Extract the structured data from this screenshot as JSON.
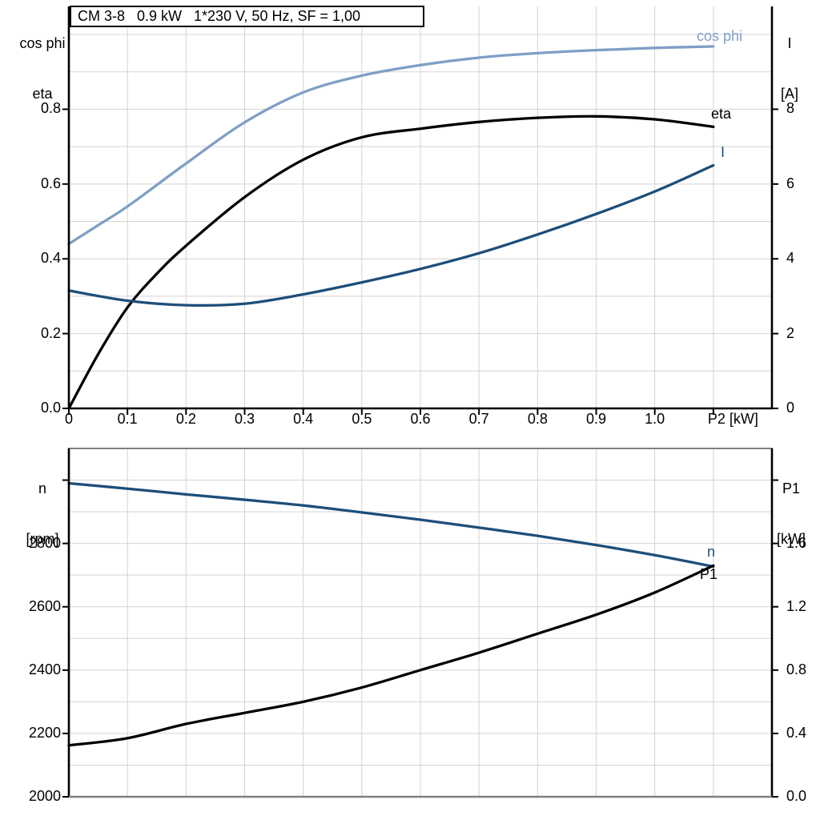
{
  "title_box": {
    "text": "CM 3-8   0.9 kW   1*230 V, 50 Hz, SF = 1,00"
  },
  "colors": {
    "background": "#ffffff",
    "light_blue": "#7e9fc5",
    "dark_blue": "#1d4e79",
    "black": "#000000",
    "grid": "#d4d4d4",
    "axis": "#000000",
    "frame_gray": "#808080"
  },
  "chart_data": [
    {
      "type": "line",
      "title": "CM 3-8   0.9 kW   1*230 V, 50 Hz, SF = 1,00",
      "xlabel": "P2 [kW]",
      "xlim": [
        0,
        1.2
      ],
      "x_tick_values": [
        0,
        0.1,
        0.2,
        0.3,
        0.4,
        0.5,
        0.6,
        0.7,
        0.8,
        0.9,
        1.0,
        1.1
      ],
      "x_tick_labels": [
        "0",
        "0.1",
        "0.2",
        "0.3",
        "0.4",
        "0.5",
        "0.6",
        "0.7",
        "0.8",
        "0.9",
        "1.0",
        ""
      ],
      "x_grid_values": [
        0.1,
        0.2,
        0.3,
        0.4,
        0.5,
        0.6,
        0.7,
        0.8,
        0.9,
        1.0,
        1.1
      ],
      "grid": true,
      "legend_position": "inline-right-end",
      "left_axis": {
        "title_lines": [
          "cos phi",
          "eta"
        ],
        "lim": [
          0,
          1.075
        ],
        "tick_values": [
          0.0,
          0.2,
          0.4,
          0.6,
          0.8
        ],
        "tick_labels": [
          "0.0",
          "0.2",
          "0.4",
          "0.6",
          "0.8"
        ],
        "grid_values": [
          0.1,
          0.2,
          0.3,
          0.4,
          0.5,
          0.6,
          0.7,
          0.8,
          0.9,
          1.0
        ]
      },
      "right_axis": {
        "title_lines": [
          "I",
          "[A]"
        ],
        "lim": [
          0,
          10.75
        ],
        "tick_values": [
          0,
          2,
          4,
          6,
          8
        ],
        "tick_labels": [
          "0",
          "2",
          "4",
          "6",
          "8"
        ]
      },
      "series": [
        {
          "name": "cos phi",
          "axis": "left",
          "color_key": "light_blue",
          "points": [
            [
              0,
              0.44
            ],
            [
              0.05,
              0.49
            ],
            [
              0.1,
              0.54
            ],
            [
              0.2,
              0.655
            ],
            [
              0.3,
              0.765
            ],
            [
              0.4,
              0.845
            ],
            [
              0.5,
              0.89
            ],
            [
              0.6,
              0.918
            ],
            [
              0.7,
              0.938
            ],
            [
              0.8,
              0.95
            ],
            [
              0.9,
              0.958
            ],
            [
              1.0,
              0.964
            ],
            [
              1.1,
              0.968
            ]
          ]
        },
        {
          "name": "eta",
          "axis": "left",
          "color_key": "black",
          "points": [
            [
              0,
              0
            ],
            [
              0.05,
              0.145
            ],
            [
              0.1,
              0.27
            ],
            [
              0.15,
              0.36
            ],
            [
              0.2,
              0.435
            ],
            [
              0.3,
              0.565
            ],
            [
              0.4,
              0.665
            ],
            [
              0.5,
              0.725
            ],
            [
              0.6,
              0.748
            ],
            [
              0.7,
              0.766
            ],
            [
              0.8,
              0.777
            ],
            [
              0.9,
              0.781
            ],
            [
              1.0,
              0.773
            ],
            [
              1.1,
              0.753
            ]
          ]
        },
        {
          "name": "I",
          "axis": "right",
          "color_key": "dark_blue",
          "points": [
            [
              0,
              3.15
            ],
            [
              0.1,
              2.88
            ],
            [
              0.2,
              2.76
            ],
            [
              0.3,
              2.8
            ],
            [
              0.4,
              3.05
            ],
            [
              0.5,
              3.37
            ],
            [
              0.6,
              3.73
            ],
            [
              0.7,
              4.15
            ],
            [
              0.8,
              4.65
            ],
            [
              0.9,
              5.2
            ],
            [
              1.0,
              5.8
            ],
            [
              1.1,
              6.5
            ]
          ]
        }
      ]
    },
    {
      "type": "line",
      "title": "",
      "xlabel": "",
      "xlim": [
        0,
        1.2
      ],
      "x_tick_values": [],
      "x_tick_labels": [],
      "x_grid_values": [
        0.1,
        0.2,
        0.3,
        0.4,
        0.5,
        0.6,
        0.7,
        0.8,
        0.9,
        1.0,
        1.1
      ],
      "grid": true,
      "legend_position": "inline-right-end",
      "left_axis": {
        "title_lines": [
          "n",
          "[rpm]"
        ],
        "lim": [
          2000,
          3100
        ],
        "tick_values": [
          2000,
          2200,
          2400,
          2600,
          2800,
          3000
        ],
        "tick_labels": [
          "2000",
          "2200",
          "2400",
          "2600",
          "2800",
          ""
        ],
        "grid_values": [
          2100,
          2200,
          2300,
          2400,
          2500,
          2600,
          2700,
          2800,
          2900,
          3000
        ]
      },
      "right_axis": {
        "title_lines": [
          "P1",
          "[kW]"
        ],
        "lim": [
          0,
          2.2
        ],
        "tick_values": [
          0.0,
          0.4,
          0.8,
          1.2,
          1.6,
          2.0
        ],
        "tick_labels": [
          "0.0",
          "0.4",
          "0.8",
          "1.2",
          "1.6",
          ""
        ]
      },
      "series": [
        {
          "name": "n",
          "axis": "left",
          "color_key": "dark_blue",
          "points": [
            [
              0,
              2990
            ],
            [
              0.1,
              2973
            ],
            [
              0.2,
              2955
            ],
            [
              0.3,
              2938
            ],
            [
              0.4,
              2920
            ],
            [
              0.5,
              2898
            ],
            [
              0.6,
              2875
            ],
            [
              0.7,
              2850
            ],
            [
              0.8,
              2824
            ],
            [
              0.9,
              2795
            ],
            [
              1.0,
              2763
            ],
            [
              1.1,
              2727
            ]
          ]
        },
        {
          "name": "P1",
          "axis": "right",
          "color_key": "black",
          "points": [
            [
              0,
              0.325
            ],
            [
              0.1,
              0.37
            ],
            [
              0.2,
              0.46
            ],
            [
              0.3,
              0.53
            ],
            [
              0.4,
              0.6
            ],
            [
              0.5,
              0.69
            ],
            [
              0.6,
              0.8
            ],
            [
              0.7,
              0.91
            ],
            [
              0.8,
              1.03
            ],
            [
              0.9,
              1.15
            ],
            [
              1.0,
              1.29
            ],
            [
              1.1,
              1.46
            ]
          ]
        }
      ]
    }
  ]
}
